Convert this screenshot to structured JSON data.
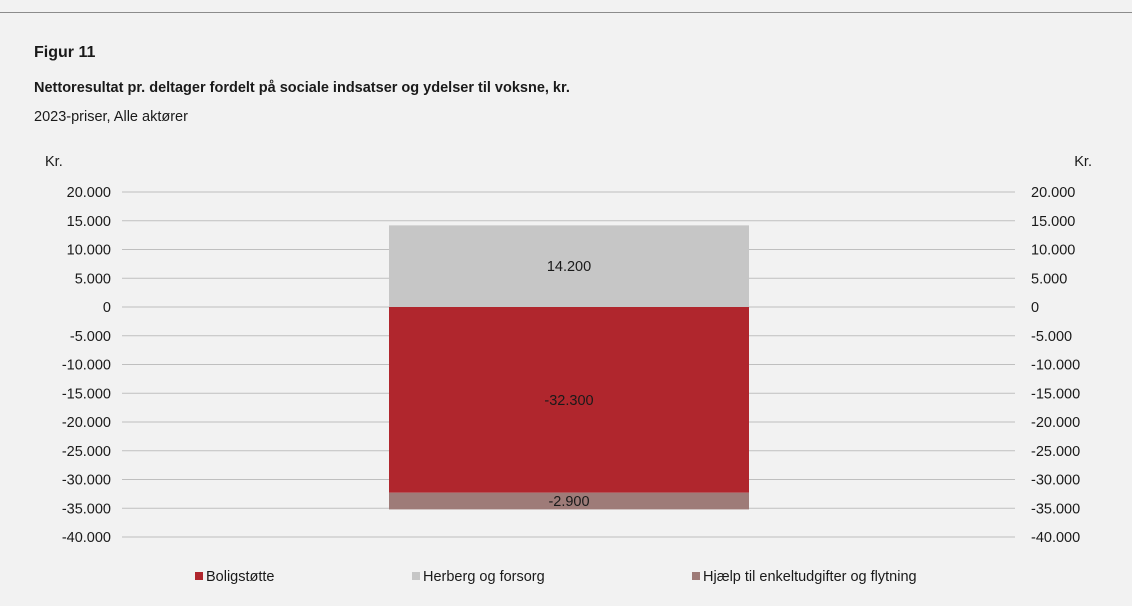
{
  "figure": {
    "label": "Figur 11",
    "title": "Nettoresultat pr. deltager fordelt på sociale indsatser og ydelser til voksne, kr.",
    "subtitle": "2023-priser, Alle aktører"
  },
  "chart_data": {
    "type": "bar",
    "stacked": true,
    "categories": [
      ""
    ],
    "series": [
      {
        "name": "Boligstøtte",
        "values": [
          -32300
        ],
        "label": "-32.300",
        "color": "#b0262d"
      },
      {
        "name": "Herberg og forsorg",
        "values": [
          14200
        ],
        "label": "14.200",
        "color": "#c6c6c6"
      },
      {
        "name": "Hjælp til enkeltudgifter og flytning",
        "values": [
          -2900
        ],
        "label": "-2.900",
        "color": "#9e7b78"
      }
    ],
    "ylabel_left": "Kr.",
    "ylabel_right": "Kr.",
    "ylim": [
      -40000,
      20000
    ],
    "yticks": [
      20000,
      15000,
      10000,
      5000,
      0,
      -5000,
      -10000,
      -15000,
      -20000,
      -25000,
      -30000,
      -35000,
      -40000
    ],
    "ytick_labels": [
      "20.000",
      "15.000",
      "10.000",
      "5.000",
      "0",
      "-5.000",
      "-10.000",
      "-15.000",
      "-20.000",
      "-25.000",
      "-30.000",
      "-35.000",
      "-40.000"
    ],
    "grid": true,
    "legend_position": "bottom",
    "secondary_axis": true
  }
}
